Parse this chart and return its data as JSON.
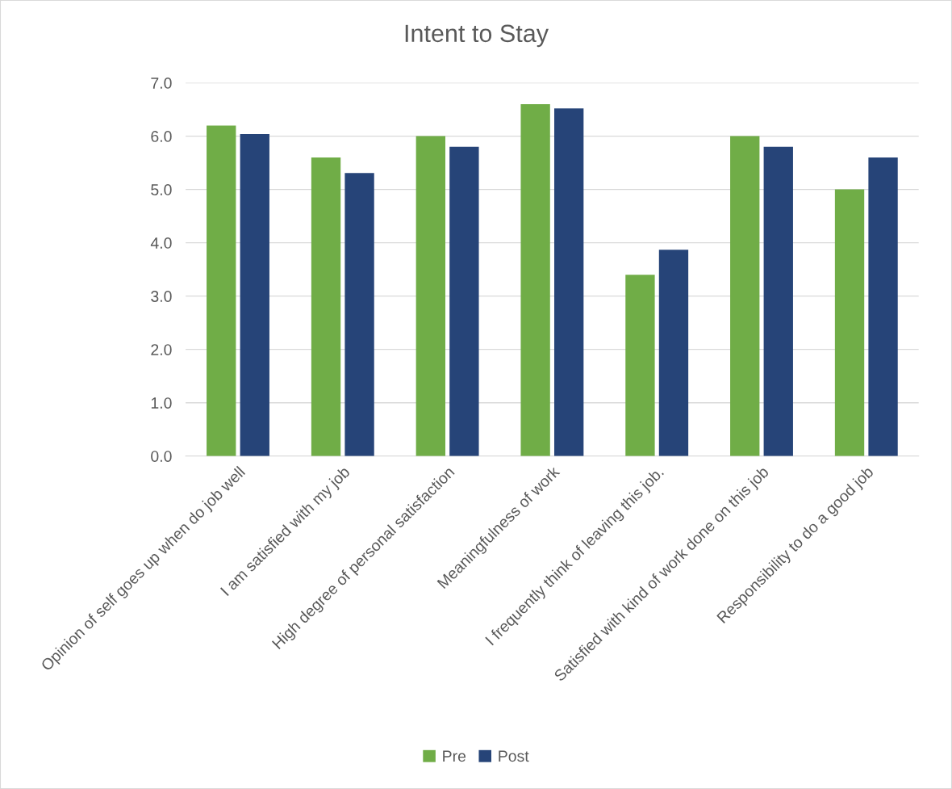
{
  "chart_data": {
    "type": "bar",
    "title": "Intent to Stay",
    "categories": [
      "Opinion of self goes up when do job well",
      "I am satisfied with my job",
      "High degree of personal satisfaction",
      "Meaningfulness of work",
      "I frequently think of leaving this job.",
      "Satisfied with kind of work done on this job",
      "Responsibility to do a good job"
    ],
    "series": [
      {
        "name": "Pre",
        "color": "#70ad47",
        "values": [
          6.2,
          5.6,
          6.0,
          6.6,
          3.4,
          6.0,
          5.0
        ]
      },
      {
        "name": "Post",
        "color": "#264478",
        "values": [
          6.04,
          5.31,
          5.8,
          6.52,
          3.87,
          5.8,
          5.6
        ]
      }
    ],
    "ylim": [
      0,
      7
    ],
    "yticks": [
      {
        "value": 0,
        "label": "0.0"
      },
      {
        "value": 1,
        "label": "1.0"
      },
      {
        "value": 2,
        "label": "2.0"
      },
      {
        "value": 3,
        "label": "3.0"
      },
      {
        "value": 4,
        "label": "4.0"
      },
      {
        "value": 5,
        "label": "5.0"
      },
      {
        "value": 6,
        "label": "6.0"
      },
      {
        "value": 7,
        "label": "7.0"
      }
    ],
    "grid": "y",
    "legend": "bottom"
  }
}
